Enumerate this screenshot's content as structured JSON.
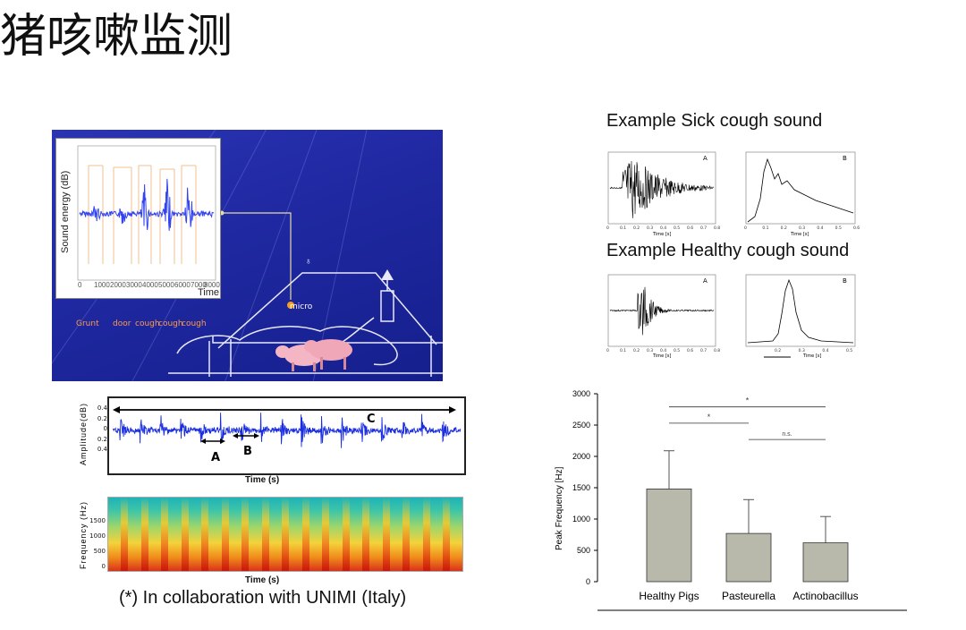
{
  "title": "猪咳嗽监测",
  "setup": {
    "y_axis_label": "Sound energy (dB)",
    "x_axis_label": "Time",
    "x_ticks": [
      "0",
      "1000",
      "2000",
      "3000",
      "4000",
      "5000",
      "6000",
      "7000",
      "8000"
    ],
    "sound_labels": [
      "Grunt",
      "door",
      "cough",
      "cough",
      "cough"
    ],
    "micro_label": "micro"
  },
  "sick_example": {
    "heading": "Example Sick cough sound",
    "panel_a_label": "A",
    "panel_b_label": "B",
    "x_label": "Time [s]",
    "a_x_ticks": [
      "0",
      "0.1",
      "0.2",
      "0.3",
      "0.4",
      "0.5",
      "0.6",
      "0.7",
      "0.8"
    ],
    "b_x_ticks": [
      "0",
      "0.1",
      "0.2",
      "0.3",
      "0.4",
      "0.5",
      "0.6"
    ]
  },
  "healthy_example": {
    "heading": "Example Healthy cough sound",
    "panel_a_label": "A",
    "panel_b_label": "B",
    "x_label": "Time [s]",
    "a_x_ticks": [
      "0",
      "0.1",
      "0.2",
      "0.3",
      "0.4",
      "0.5",
      "0.6",
      "0.7",
      "0.8"
    ],
    "b_x_ticks": [
      "0.2",
      "0.3",
      "0.4",
      "0.5"
    ]
  },
  "amplitude_plot": {
    "ylabel": "Amplitude(dB)",
    "xlabel": "Time (s)",
    "y_ticks": [
      "0.4",
      "0.2",
      "0",
      "0.2",
      "0.4"
    ],
    "markers": [
      "A",
      "B",
      "C"
    ]
  },
  "spectrogram": {
    "ylabel": "Frequency (Hz)",
    "xlabel": "Time (s)",
    "y_ticks": [
      "1500",
      "1000",
      "500",
      "0"
    ]
  },
  "footnote": "(*) In collaboration with UNIMI (Italy)",
  "colors": {
    "panel_bg": "#1f28a0",
    "waveform": "#1a2ee0",
    "bar_fill": "#b8b8ab",
    "orange": "#ff9b4a"
  },
  "chart_data": {
    "type": "bar",
    "categories": [
      "Healthy Pigs",
      "Pasteurella",
      "Actinobacillus"
    ],
    "values": [
      1480,
      770,
      620
    ],
    "error_upper": [
      2090,
      1310,
      1040
    ],
    "ylabel": "Peak Frequency [Hz]",
    "ylim": [
      0,
      3000
    ],
    "y_ticks": [
      "0",
      "500",
      "1000",
      "1500",
      "2000",
      "2500",
      "3000"
    ],
    "significance": [
      {
        "label": "*",
        "from": "Healthy Pigs",
        "to": "Actinobacillus"
      },
      {
        "label": "*",
        "from": "Healthy Pigs",
        "to": "Pasteurella"
      },
      {
        "label": "n.s.",
        "from": "Pasteurella",
        "to": "Actinobacillus"
      }
    ]
  }
}
